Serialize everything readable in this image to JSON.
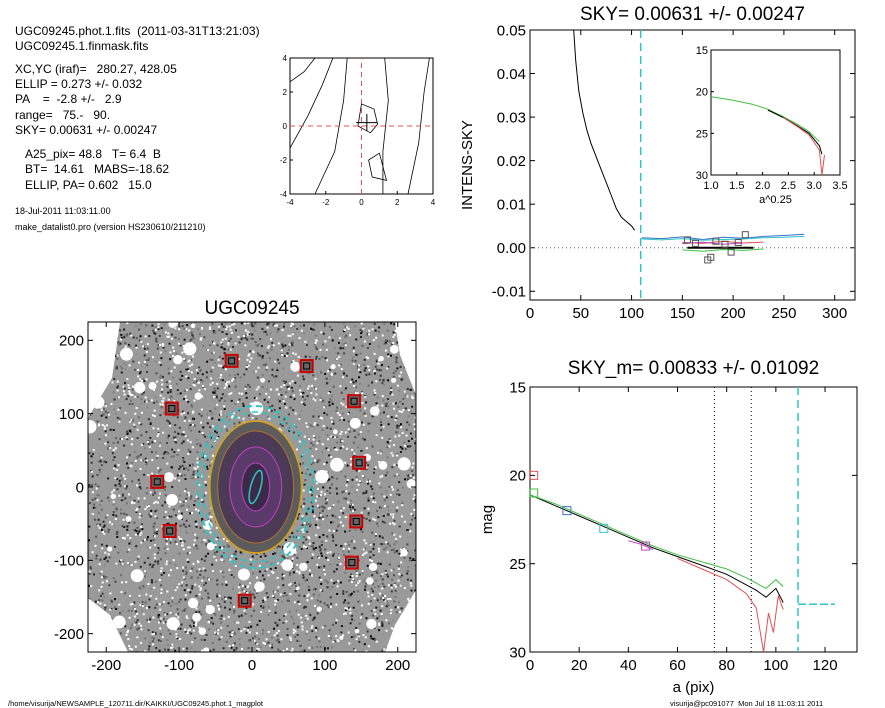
{
  "header": {
    "line1": "UGC09245.phot.1.fits  (2011-03-31T13:21:03)",
    "line2": "UGC09245.1.finmask.fits",
    "params": [
      "XC,YC (iraf)=   280.27, 428.05",
      "ELLIP = 0.273 +/- 0.032",
      "PA    =  -2.8 +/-   2.9",
      "range=   75.-   90.",
      "SKY= 0.00631 +/- 0.00247"
    ],
    "derived": [
      "A25_pix= 48.8   T= 6.4  B",
      "BT=  14.61   MABS=-18.62",
      "ELLIP, PA= 0.602   15.0"
    ],
    "date": "18-Jul-2011 11:03:11.00",
    "program": "make_datalist0.pro (version HS230610/211210)"
  },
  "footer": {
    "path": "/home/visurija/NEWSAMPLE_120711.dir/KAIKKI/UGC09245.phot.1_magplot",
    "user": "visurija@pc091077  Mon Jul 18 11:03:11 2011"
  },
  "chart_data": [
    {
      "type": "line",
      "title": "SKY= 0.00631 +/- 0.00247",
      "xlabel": "",
      "ylabel": "INTENS-SKY",
      "xlim": [
        0,
        320
      ],
      "ylim": [
        -0.012,
        0.05
      ],
      "xticks": [
        "0",
        "50",
        "100",
        "150",
        "200",
        "250",
        "300"
      ],
      "yticks": [
        "-0.01",
        "0.00",
        "0.01",
        "0.02",
        "0.03",
        "0.04",
        "0.05"
      ],
      "vline_x": 109,
      "series": [
        {
          "color": "#000000",
          "x": [
            43,
            45,
            48,
            52,
            56,
            60,
            65,
            70,
            75,
            80,
            85,
            90,
            95,
            100,
            103
          ],
          "y": [
            0.05,
            0.043,
            0.036,
            0.031,
            0.027,
            0.024,
            0.021,
            0.018,
            0.015,
            0.012,
            0.009,
            0.007,
            0.006,
            0.005,
            0.004
          ]
        },
        {
          "color": "#3a6fd0",
          "x": [
            110,
            130,
            150,
            170,
            190,
            210,
            230,
            250,
            270
          ],
          "y": [
            0.0023,
            0.0021,
            0.0025,
            0.0019,
            0.0024,
            0.0022,
            0.0026,
            0.0028,
            0.0031
          ]
        },
        {
          "color": "#2ec4c4",
          "x": [
            110,
            130,
            150,
            170,
            190,
            210,
            230,
            250,
            270
          ],
          "y": [
            0.002,
            0.0018,
            0.0021,
            0.0017,
            0.0019,
            0.002,
            0.0023,
            0.0024,
            0.0026
          ]
        },
        {
          "color": "#e05050",
          "x": [
            150,
            170,
            190,
            210,
            230
          ],
          "y": [
            0.0012,
            0.001,
            0.0015,
            0.0011,
            0.0013
          ]
        },
        {
          "color": "#c040c0",
          "x": [
            150,
            170,
            190,
            210
          ],
          "y": [
            0.0009,
            0.0013,
            0.0008,
            0.0011
          ]
        },
        {
          "color": "#40c040",
          "x": [
            150,
            170,
            190,
            210,
            230
          ],
          "y": [
            -0.0005,
            -0.0008,
            -0.0004,
            -0.0006,
            -0.0003
          ]
        },
        {
          "color": "#000000",
          "x": [
            155,
            220
          ],
          "y": [
            0.0,
            0.0
          ]
        }
      ],
      "squares": [
        {
          "x": 155,
          "y": 0.0018
        },
        {
          "x": 163,
          "y": 0.001
        },
        {
          "x": 175,
          "y": -0.0028
        },
        {
          "x": 178,
          "y": -0.0022
        },
        {
          "x": 183,
          "y": 0.0015
        },
        {
          "x": 192,
          "y": 0.0008
        },
        {
          "x": 198,
          "y": -0.001
        },
        {
          "x": 205,
          "y": 0.0012
        },
        {
          "x": 212,
          "y": 0.003
        }
      ],
      "inset": {
        "xlabel": "a^0.25",
        "xlim": [
          1.0,
          3.5
        ],
        "ylim": [
          15,
          30
        ],
        "xticks": [
          "1.0",
          "1.5",
          "2.0",
          "2.5",
          "3.0",
          "3.5"
        ],
        "yticks": [
          "15",
          "20",
          "25",
          "30"
        ],
        "series": [
          {
            "color": "#40c040",
            "x": [
              1.0,
              1.4,
              1.8,
              2.1,
              2.4,
              2.7,
              2.9,
              3.1
            ],
            "y": [
              20.6,
              21.0,
              21.5,
              22.1,
              23.0,
              24.0,
              24.8,
              26.0
            ]
          },
          {
            "color": "#000000",
            "x": [
              2.1,
              2.4,
              2.7,
              2.9,
              3.1,
              3.15
            ],
            "y": [
              22.2,
              23.1,
              24.2,
              25.0,
              26.5,
              27.5
            ]
          },
          {
            "color": "#e05050",
            "x": [
              2.4,
              2.7,
              2.9,
              3.1,
              3.15,
              3.2
            ],
            "y": [
              23.1,
              24.3,
              25.2,
              27.0,
              30.0,
              27.6
            ]
          }
        ]
      }
    },
    {
      "type": "line",
      "title": "",
      "xlabel": "",
      "ylabel": "",
      "xlim": [
        -4,
        4
      ],
      "ylim": [
        -4,
        4
      ],
      "xticks": [
        "-4",
        "-2",
        "0",
        "2",
        "4"
      ],
      "yticks": [
        "-4",
        "-2",
        "0",
        "2",
        "4"
      ]
    },
    {
      "type": "scatter",
      "title": "UGC09245",
      "xlabel": "",
      "ylabel": "",
      "xlim": [
        -225,
        225
      ],
      "ylim": [
        -225,
        225
      ],
      "xticks": [
        "-200",
        "-100",
        "0",
        "100",
        "200"
      ],
      "yticks": [
        "-200",
        "-100",
        "0",
        "100",
        "200"
      ],
      "sky_boxes": [
        {
          "x": -28,
          "y": 172
        },
        {
          "x": 75,
          "y": 165
        },
        {
          "x": -110,
          "y": 107
        },
        {
          "x": 140,
          "y": 117
        },
        {
          "x": -130,
          "y": 7
        },
        {
          "x": 147,
          "y": 33
        },
        {
          "x": -113,
          "y": -60
        },
        {
          "x": 143,
          "y": -47
        },
        {
          "x": 137,
          "y": -103
        },
        {
          "x": -10,
          "y": -155
        }
      ]
    },
    {
      "type": "line",
      "title": "SKY_m=  0.00833 +/- 0.01092",
      "xlabel": "a (pix)",
      "ylabel": "mag",
      "xlim": [
        0,
        133
      ],
      "ylim": [
        15,
        30
      ],
      "xticks": [
        "0",
        "20",
        "40",
        "60",
        "80",
        "100",
        "120"
      ],
      "yticks": [
        "15",
        "20",
        "25",
        "30"
      ],
      "vlines_dotted": [
        75,
        90
      ],
      "vline_dashed": 109,
      "sky_level": 27.3,
      "series": [
        {
          "color": "#000000",
          "x": [
            0,
            10,
            20,
            30,
            40,
            50,
            60,
            70,
            80,
            88,
            92,
            96,
            100,
            103
          ],
          "y": [
            21.1,
            21.7,
            22.3,
            22.9,
            23.5,
            24.1,
            24.6,
            25.1,
            25.6,
            26.2,
            26.5,
            26.9,
            26.4,
            27.2
          ]
        },
        {
          "color": "#40c040",
          "x": [
            0,
            10,
            20,
            30,
            40,
            50,
            60,
            70,
            80,
            88,
            92,
            96,
            100,
            103
          ],
          "y": [
            21.1,
            21.6,
            22.2,
            22.8,
            23.4,
            24.0,
            24.5,
            24.9,
            25.3,
            25.8,
            26.1,
            26.4,
            25.9,
            26.3
          ]
        },
        {
          "color": "#e05050",
          "x": [
            60,
            70,
            80,
            88,
            92,
            95,
            97,
            99,
            101,
            103
          ],
          "y": [
            24.7,
            25.3,
            25.9,
            26.7,
            27.5,
            30.0,
            27.8,
            28.9,
            26.8,
            27.6
          ]
        },
        {
          "color": "#c040c0",
          "x": [
            40,
            45,
            50
          ],
          "y": [
            23.7,
            23.9,
            24.2
          ]
        }
      ],
      "squares": [
        {
          "x": 1.5,
          "y": 20.0,
          "color": "#e05050"
        },
        {
          "x": 1.5,
          "y": 21.0,
          "color": "#40c040"
        },
        {
          "x": 15,
          "y": 22.0,
          "color": "#3a6fd0"
        },
        {
          "x": 30,
          "y": 23.0,
          "color": "#2ec4c4"
        },
        {
          "x": 47,
          "y": 24.0,
          "color": "#c040c0"
        }
      ]
    }
  ]
}
